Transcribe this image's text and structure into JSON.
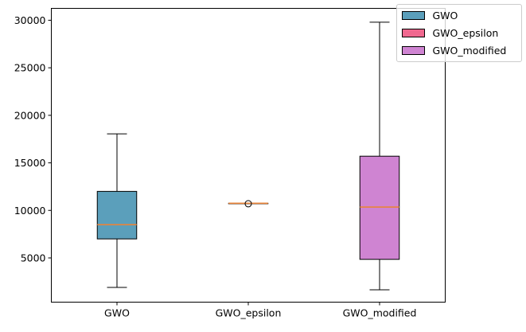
{
  "chart_data": {
    "type": "boxplot",
    "categories": [
      "GWO",
      "GWO_epsilon",
      "GWO_modified"
    ],
    "series": [
      {
        "name": "GWO",
        "color": "#5b9fbb",
        "whisker_low": 1900,
        "q1": 7000,
        "median": 8500,
        "q3": 12000,
        "whisker_high": 18050,
        "outliers": []
      },
      {
        "name": "GWO_epsilon",
        "color": "#f0688f",
        "whisker_low": 10750,
        "q1": 10750,
        "median": 10750,
        "q3": 10750,
        "whisker_high": 10750,
        "outliers": [
          10700
        ]
      },
      {
        "name": "GWO_modified",
        "color": "#cf84d2",
        "whisker_low": 1650,
        "q1": 4850,
        "median": 10350,
        "q3": 15700,
        "whisker_high": 29800,
        "outliers": []
      }
    ],
    "median_color": "#e8843a",
    "ylim": [
      350,
      31250
    ],
    "yticks": [
      5000,
      10000,
      15000,
      20000,
      25000,
      30000
    ],
    "grid": false,
    "legend_position": "top-right",
    "title": "",
    "xlabel": "",
    "ylabel": ""
  }
}
